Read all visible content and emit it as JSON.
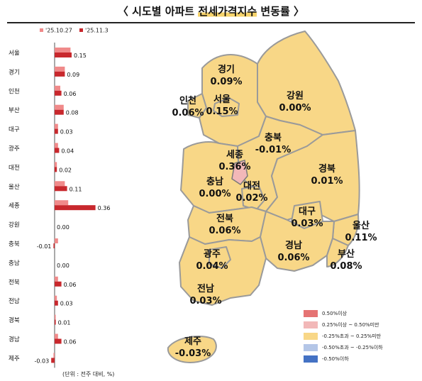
{
  "title": {
    "prefix": "〈 시도별 아파트 ",
    "highlight": "전세가격지수",
    "suffix": " 변동률 〉"
  },
  "unit_note": "(단위 : 전주 대비, %)",
  "colors": {
    "prev_bar": "#f08a8a",
    "curr_bar": "#c8282d",
    "region_fill": "#f8d787",
    "region_stroke": "#9a9a9a",
    "sejong_fill": "#f2b8b8"
  },
  "legend": [
    {
      "label": "0.50%이상",
      "color": "#e57373"
    },
    {
      "label": "0.25%이상 ~ 0.50%미만",
      "color": "#f2b8b8"
    },
    {
      "label": "-0.25%초과 ~ 0.25%미만",
      "color": "#f8d787"
    },
    {
      "label": "-0.50%초과 ~ -0.25%이하",
      "color": "#b4c6e7"
    },
    {
      "label": "-0.50%이하",
      "color": "#4472c4"
    }
  ],
  "chart_data": {
    "type": "bar",
    "orientation": "horizontal",
    "categories": [
      "서울",
      "경기",
      "인천",
      "부산",
      "대구",
      "광주",
      "대전",
      "울산",
      "세종",
      "강원",
      "충북",
      "충남",
      "전북",
      "전남",
      "경북",
      "경남",
      "제주"
    ],
    "series": [
      {
        "name": "'25.10.27",
        "values": [
          0.14,
          0.09,
          0.05,
          0.08,
          0.03,
          0.03,
          0.02,
          0.09,
          0.12,
          0.0,
          0.03,
          0.0,
          0.03,
          0.02,
          0.01,
          0.03,
          -0.01
        ]
      },
      {
        "name": "'25.11.3",
        "values": [
          0.15,
          0.09,
          0.06,
          0.08,
          0.03,
          0.04,
          0.02,
          0.11,
          0.36,
          0.0,
          -0.01,
          0.0,
          0.06,
          0.03,
          0.01,
          0.06,
          -0.03
        ]
      }
    ],
    "data_labels": [
      "0.15",
      "0.09",
      "0.06",
      "0.08",
      "0.03",
      "0.04",
      "0.02",
      "0.11",
      "0.36",
      "0.00",
      "-0.01",
      "0.00",
      "0.06",
      "0.03",
      "0.01",
      "0.06",
      "-0.03"
    ],
    "legend_position": "top"
  },
  "map": {
    "regions": [
      {
        "id": "gyeonggi",
        "name": "경기",
        "value": "0.09%"
      },
      {
        "id": "gangwon",
        "name": "강원",
        "value": "0.00%"
      },
      {
        "id": "incheon",
        "name": "인천",
        "value": "0.06%"
      },
      {
        "id": "seoul",
        "name": "서울",
        "value": "0.15%"
      },
      {
        "id": "chungbuk",
        "name": "충북",
        "value": "-0.01%"
      },
      {
        "id": "sejong",
        "name": "세종",
        "value": "0.36%"
      },
      {
        "id": "gyeongbuk",
        "name": "경북",
        "value": "0.01%"
      },
      {
        "id": "chungnam",
        "name": "충남",
        "value": "0.00%"
      },
      {
        "id": "daejeon",
        "name": "대전",
        "value": "0.02%"
      },
      {
        "id": "jeonbuk",
        "name": "전북",
        "value": "0.06%"
      },
      {
        "id": "daegu",
        "name": "대구",
        "value": "0.03%"
      },
      {
        "id": "ulsan",
        "name": "울산",
        "value": "0.11%"
      },
      {
        "id": "gwangju",
        "name": "광주",
        "value": "0.04%"
      },
      {
        "id": "gyeongnam",
        "name": "경남",
        "value": "0.06%"
      },
      {
        "id": "busan",
        "name": "부산",
        "value": "0.08%"
      },
      {
        "id": "jeonnam",
        "name": "전남",
        "value": "0.03%"
      },
      {
        "id": "jeju",
        "name": "제주",
        "value": "-0.03%"
      }
    ]
  }
}
